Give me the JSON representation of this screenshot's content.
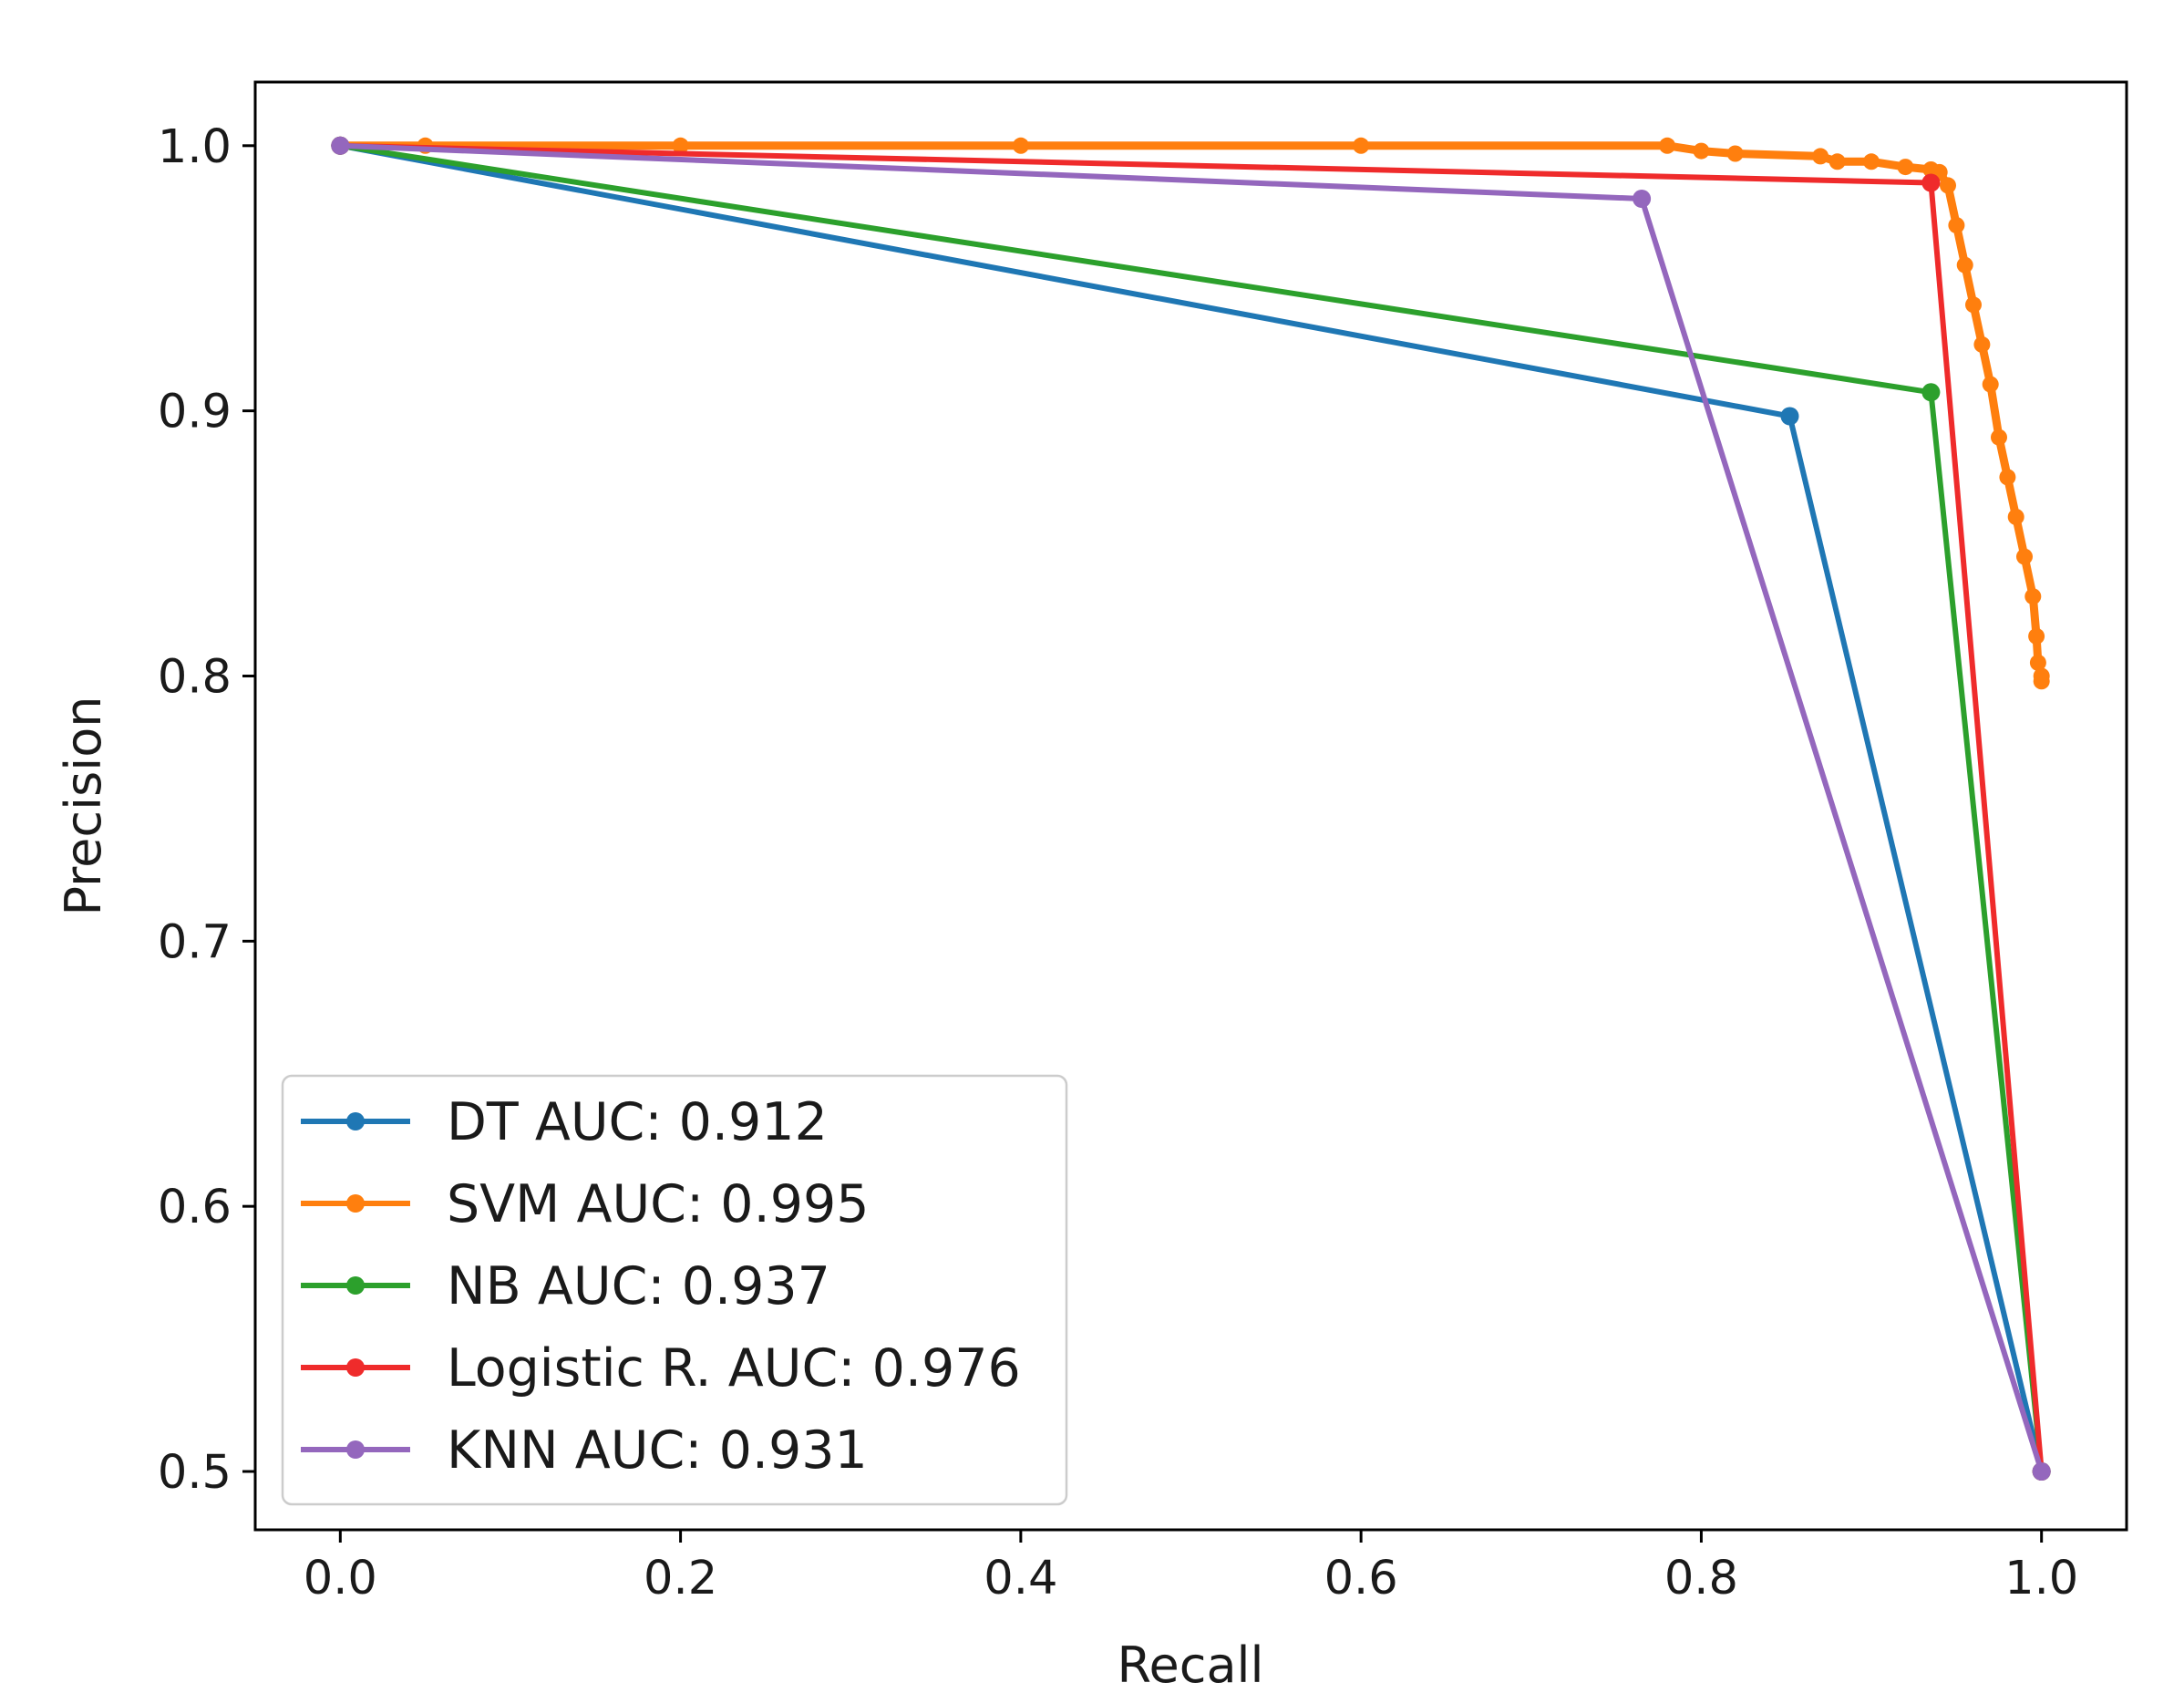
{
  "chart_data": {
    "type": "line",
    "title": "",
    "xlabel": "Recall",
    "ylabel": "Precision",
    "xlim": [
      -0.05,
      1.05
    ],
    "ylim": [
      0.478,
      1.024
    ],
    "xticks": [
      {
        "value": 0.0,
        "label": "0.0"
      },
      {
        "value": 0.2,
        "label": "0.2"
      },
      {
        "value": 0.4,
        "label": "0.4"
      },
      {
        "value": 0.6,
        "label": "0.6"
      },
      {
        "value": 0.8,
        "label": "0.8"
      },
      {
        "value": 1.0,
        "label": "1.0"
      }
    ],
    "yticks": [
      {
        "value": 0.5,
        "label": "0.5"
      },
      {
        "value": 0.6,
        "label": "0.6"
      },
      {
        "value": 0.7,
        "label": "0.7"
      },
      {
        "value": 0.8,
        "label": "0.8"
      },
      {
        "value": 0.9,
        "label": "0.9"
      },
      {
        "value": 1.0,
        "label": "1.0"
      }
    ],
    "grid": false,
    "legend_position": "lower-left",
    "series": [
      {
        "name": "DT AUC:  0.912",
        "color": "#1f77b4",
        "markers": true,
        "x": [
          0.0,
          0.852,
          1.0
        ],
        "y": [
          1.0,
          0.898,
          0.5
        ]
      },
      {
        "name": "SVM AUC:  0.995",
        "color": "#ff7f0e",
        "markers": true,
        "dense": true,
        "x": [
          0.0,
          0.05,
          0.2,
          0.4,
          0.6,
          0.78,
          0.8,
          0.82,
          0.87,
          0.88,
          0.9,
          0.92,
          0.935,
          0.94,
          0.945,
          0.95,
          0.955,
          0.96,
          0.965,
          0.97,
          0.975,
          0.98,
          0.985,
          0.99,
          0.995,
          0.997,
          0.998,
          1.0,
          1.0
        ],
        "y": [
          1.0,
          1.0,
          1.0,
          1.0,
          1.0,
          1.0,
          0.998,
          0.997,
          0.996,
          0.994,
          0.994,
          0.992,
          0.991,
          0.99,
          0.985,
          0.97,
          0.955,
          0.94,
          0.925,
          0.91,
          0.89,
          0.875,
          0.86,
          0.845,
          0.83,
          0.815,
          0.805,
          0.8,
          0.798
        ]
      },
      {
        "name": "NB AUC:  0.937",
        "color": "#2ca02c",
        "markers": true,
        "x": [
          0.0,
          0.935,
          1.0
        ],
        "y": [
          1.0,
          0.907,
          0.5
        ]
      },
      {
        "name": "Logistic R. AUC:  0.976",
        "color": "#ef2b2b",
        "markers": true,
        "x": [
          0.0,
          0.935,
          1.0
        ],
        "y": [
          1.0,
          0.986,
          0.5
        ]
      },
      {
        "name": "KNN AUC:  0.931",
        "color": "#9467bd",
        "markers": true,
        "x": [
          0.0,
          0.765,
          1.0
        ],
        "y": [
          1.0,
          0.98,
          0.5
        ]
      }
    ]
  }
}
